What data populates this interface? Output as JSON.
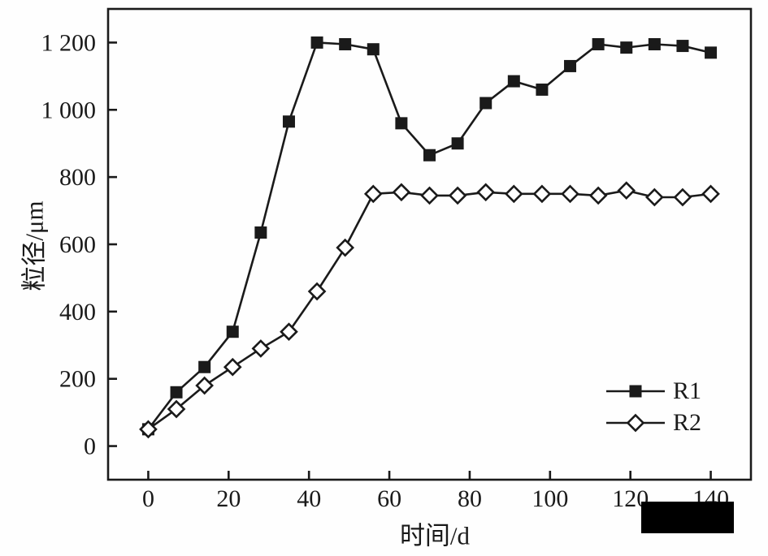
{
  "figure": {
    "background": "#fefefe",
    "ink_color": "#1a1a1a"
  },
  "chart_data": {
    "type": "line",
    "title": "",
    "xlabel": "时间/d",
    "ylabel": "粒径/μm",
    "xlim": [
      -10,
      150
    ],
    "ylim": [
      -100,
      1300
    ],
    "x_ticks": [
      0,
      20,
      40,
      60,
      80,
      100,
      120,
      140
    ],
    "x_tick_labels": [
      "0",
      "20",
      "40",
      "60",
      "80",
      "100",
      "120",
      "140"
    ],
    "y_ticks": [
      0,
      200,
      400,
      600,
      800,
      1000,
      1200
    ],
    "y_tick_labels": [
      "0",
      "200",
      "400",
      "600",
      "800",
      "1 000",
      "1 200"
    ],
    "grid": false,
    "legend_position": "inside-bottom-right",
    "x": [
      0,
      7,
      14,
      21,
      28,
      35,
      42,
      49,
      56,
      63,
      70,
      77,
      84,
      91,
      98,
      105,
      112,
      119,
      126,
      133,
      140
    ],
    "series": [
      {
        "name": "R1",
        "marker": "filled-square",
        "color": "#1a1a1a",
        "values": [
          50,
          160,
          235,
          340,
          635,
          965,
          1200,
          1195,
          1180,
          960,
          865,
          900,
          1020,
          1085,
          1060,
          1130,
          1195,
          1185,
          1195,
          1190,
          1170
        ]
      },
      {
        "name": "R2",
        "marker": "open-diamond",
        "color": "#1a1a1a",
        "values": [
          50,
          110,
          180,
          235,
          290,
          340,
          460,
          590,
          750,
          755,
          745,
          745,
          755,
          750,
          750,
          750,
          745,
          760,
          740,
          740,
          750
        ]
      }
    ]
  },
  "legend": {
    "entries": [
      {
        "label": "R1",
        "marker": "filled-square"
      },
      {
        "label": "R2",
        "marker": "open-diamond"
      }
    ]
  },
  "redaction": {
    "present": true
  }
}
